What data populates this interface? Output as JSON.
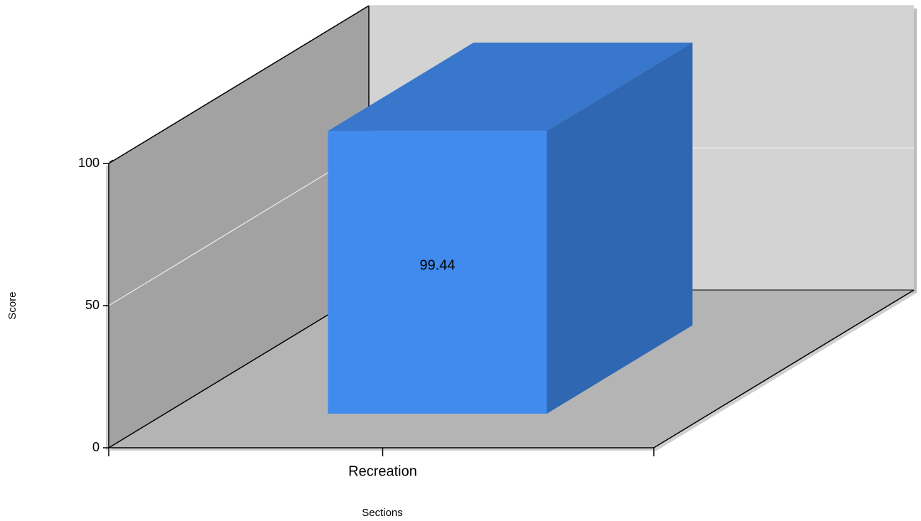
{
  "chart_data": {
    "type": "bar",
    "style": "3d",
    "categories": [
      "Recreation"
    ],
    "values": [
      99.44
    ],
    "value_labels": [
      "99.44"
    ],
    "xlabel": "Sections",
    "ylabel": "Score",
    "ylim": [
      0,
      100
    ],
    "yticks": [
      0,
      50,
      100
    ],
    "ytick_labels": [
      "0",
      "50",
      "100"
    ],
    "grid": true,
    "legend": "none",
    "colors": {
      "bar_front": "#418AEE",
      "bar_top": "#3877CB",
      "bar_side": "#2F67B3",
      "back_wall": "#D3D3D3",
      "left_wall": "#A2A2A2",
      "floor": "#B4B4B4",
      "gridline": "#EDEDED"
    }
  }
}
